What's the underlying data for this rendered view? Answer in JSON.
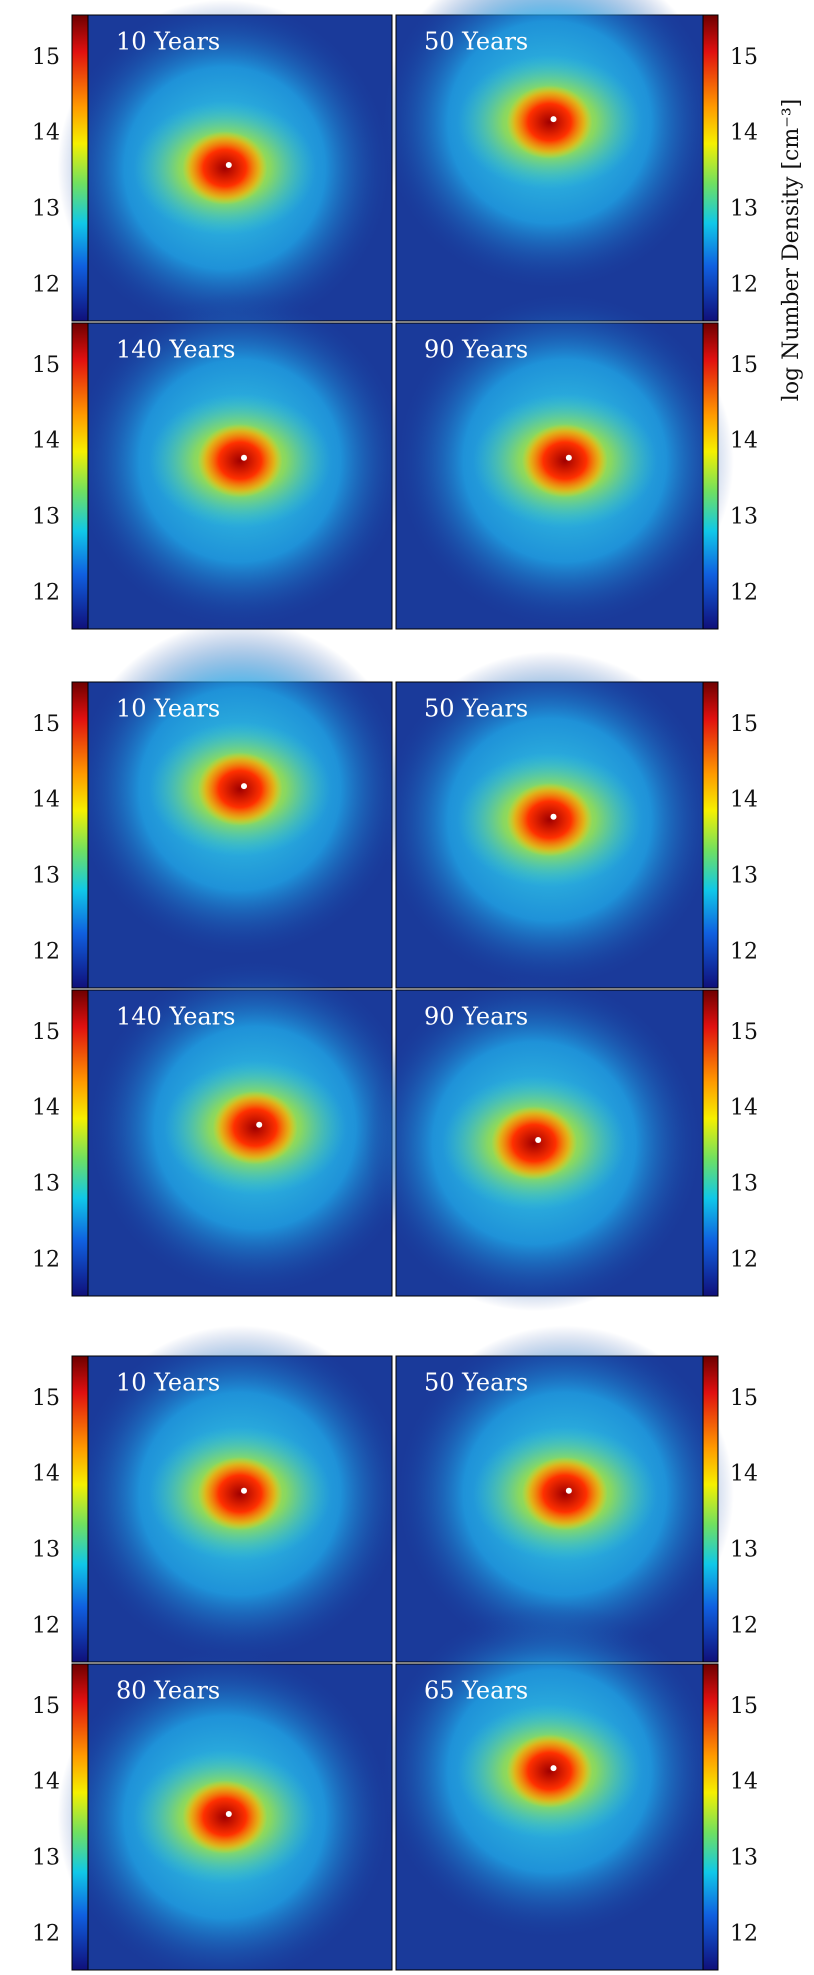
{
  "axis_label": "log Number Density [cm⁻³]",
  "groups": [
    {
      "panels": [
        {
          "label": "10 Years"
        },
        {
          "label": "50 Years"
        },
        {
          "label": "140 Years"
        },
        {
          "label": "90 Years"
        }
      ],
      "colorbar_ticks": [
        12,
        13,
        14,
        15
      ]
    },
    {
      "panels": [
        {
          "label": "10 Years"
        },
        {
          "label": "50 Years"
        },
        {
          "label": "140 Years"
        },
        {
          "label": "90 Years"
        }
      ],
      "colorbar_ticks": [
        12,
        13,
        14,
        15
      ]
    },
    {
      "panels": [
        {
          "label": "10 Years"
        },
        {
          "label": "50 Years"
        },
        {
          "label": "80 Years"
        },
        {
          "label": "65 Years"
        }
      ],
      "colorbar_ticks": [
        12,
        13,
        14,
        15
      ]
    }
  ]
}
